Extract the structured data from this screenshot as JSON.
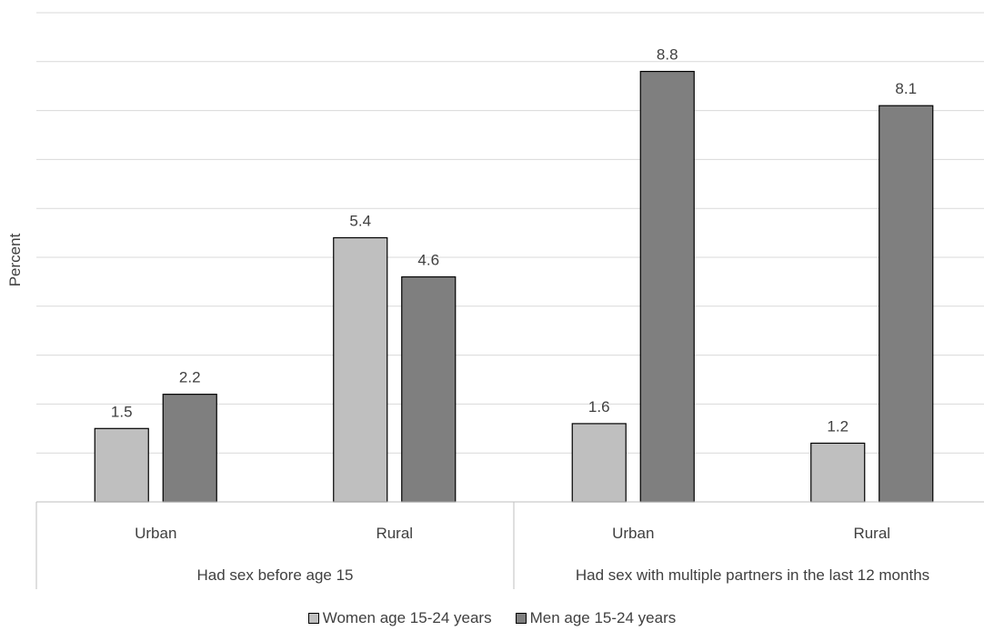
{
  "chart_data": {
    "type": "bar",
    "ylabel": "Percent",
    "ylim": [
      0,
      10
    ],
    "y_gridline_step": 1,
    "y_tick_labels_shown": false,
    "groups": [
      {
        "label": "Had sex before age 15",
        "categories": [
          "Urban",
          "Rural"
        ]
      },
      {
        "label": "Had sex with multiple partners in the last 12 months",
        "categories": [
          "Urban",
          "Rural"
        ]
      }
    ],
    "series": [
      {
        "name": "Women age 15-24 years",
        "color": "#bfbfbf",
        "values": [
          1.5,
          5.4,
          1.6,
          1.2
        ]
      },
      {
        "name": "Men age 15-24 years",
        "color": "#7f7f7f",
        "values": [
          2.2,
          4.6,
          8.8,
          8.1
        ]
      }
    ],
    "legend_position": "bottom",
    "grid": true
  }
}
